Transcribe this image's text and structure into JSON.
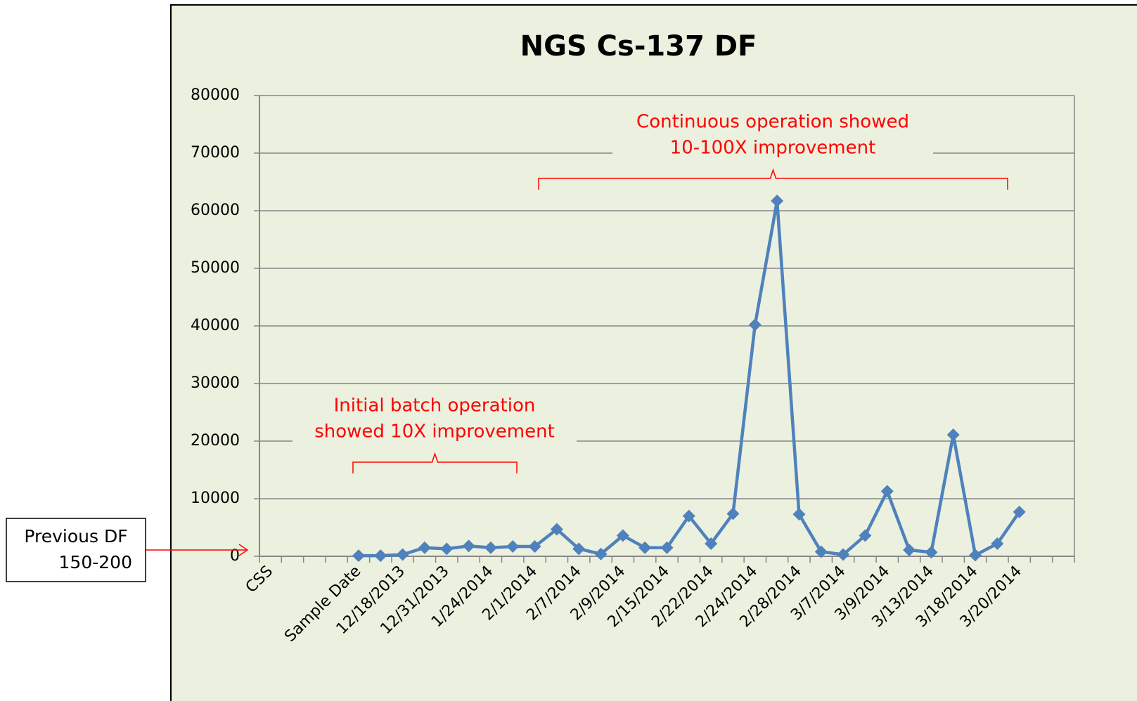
{
  "chart_data": {
    "type": "line",
    "title": "NGS Cs-137 DF",
    "categories": [
      "CSS",
      null,
      null,
      null,
      "Sample Date",
      null,
      "12/18/2013",
      null,
      "12/31/2013",
      null,
      "1/24/2014",
      null,
      "2/1/2014",
      null,
      "2/7/2014",
      null,
      "2/9/2014",
      null,
      "2/15/2014",
      null,
      "2/22/2014",
      null,
      "2/24/2014",
      null,
      "2/28/2014",
      null,
      "3/7/2014",
      null,
      "3/9/2014",
      null,
      "3/13/2014",
      null,
      "3/18/2014",
      null,
      "3/20/2014",
      null,
      null
    ],
    "series": [
      {
        "name": "DF",
        "color": "#4f81bd",
        "values": [
          null,
          null,
          null,
          null,
          100,
          100,
          300,
          1500,
          1300,
          1800,
          1500,
          1700,
          1700,
          4700,
          1300,
          400,
          3600,
          1500,
          1500,
          7000,
          2200,
          7400,
          40200,
          61700,
          7300,
          800,
          300,
          3600,
          11300,
          1100,
          700,
          21100,
          200,
          2200,
          7700,
          null,
          null
        ]
      }
    ],
    "ylim": [
      0,
      80000
    ],
    "yticks": [
      0,
      10000,
      20000,
      30000,
      40000,
      50000,
      60000,
      70000,
      80000
    ],
    "grid": true,
    "annotations": [
      {
        "text": [
          "Continuous operation showed",
          "10-100X improvement"
        ]
      },
      {
        "text": [
          "Initial batch operation",
          "showed 10X improvement"
        ]
      }
    ],
    "side_note": [
      "Previous DF",
      "150-200"
    ]
  }
}
